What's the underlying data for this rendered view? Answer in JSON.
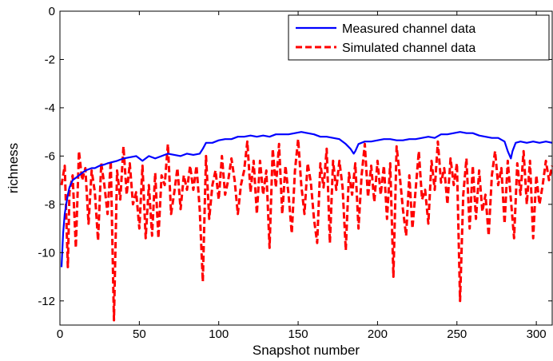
{
  "chart_data": {
    "type": "line",
    "title": "",
    "xlabel": "Snapshot number",
    "ylabel": "richness",
    "xlim": [
      0,
      310
    ],
    "ylim": [
      -13,
      0
    ],
    "xticks": [
      0,
      50,
      100,
      150,
      200,
      250,
      300
    ],
    "yticks": [
      0,
      -2,
      -4,
      -6,
      -8,
      -10,
      -12
    ],
    "grid": false,
    "legend_position": "top-right",
    "series": [
      {
        "name": "Measured channel data",
        "color": "#0000ff",
        "style": "solid",
        "x": [
          1,
          2,
          3,
          4,
          5,
          6,
          8,
          10,
          12,
          14,
          16,
          18,
          20,
          22,
          25,
          28,
          30,
          33,
          36,
          40,
          44,
          48,
          52,
          56,
          60,
          64,
          68,
          72,
          76,
          80,
          84,
          88,
          90,
          92,
          96,
          100,
          104,
          108,
          112,
          116,
          120,
          124,
          128,
          132,
          136,
          140,
          144,
          148,
          152,
          156,
          160,
          164,
          168,
          172,
          176,
          180,
          183,
          185,
          186,
          188,
          192,
          196,
          200,
          204,
          208,
          212,
          216,
          220,
          224,
          228,
          232,
          236,
          240,
          244,
          248,
          252,
          256,
          260,
          264,
          268,
          272,
          276,
          280,
          282,
          284,
          285,
          287,
          290,
          294,
          298,
          302,
          306,
          310
        ],
        "y": [
          -10.6,
          -9.2,
          -8.4,
          -8.0,
          -7.6,
          -7.3,
          -7.0,
          -6.9,
          -6.8,
          -6.7,
          -6.6,
          -6.55,
          -6.5,
          -6.5,
          -6.4,
          -6.35,
          -6.3,
          -6.25,
          -6.2,
          -6.1,
          -6.05,
          -6.0,
          -6.2,
          -6.0,
          -6.1,
          -6.0,
          -5.9,
          -5.95,
          -6.0,
          -5.9,
          -5.95,
          -5.9,
          -5.7,
          -5.45,
          -5.45,
          -5.35,
          -5.3,
          -5.3,
          -5.2,
          -5.2,
          -5.15,
          -5.2,
          -5.15,
          -5.2,
          -5.1,
          -5.1,
          -5.1,
          -5.05,
          -5.0,
          -5.05,
          -5.1,
          -5.2,
          -5.2,
          -5.25,
          -5.3,
          -5.5,
          -5.7,
          -5.9,
          -5.8,
          -5.5,
          -5.4,
          -5.4,
          -5.35,
          -5.3,
          -5.3,
          -5.35,
          -5.35,
          -5.3,
          -5.3,
          -5.25,
          -5.2,
          -5.25,
          -5.1,
          -5.1,
          -5.05,
          -5.0,
          -5.05,
          -5.05,
          -5.15,
          -5.2,
          -5.25,
          -5.25,
          -5.4,
          -5.8,
          -6.1,
          -5.8,
          -5.45,
          -5.4,
          -5.45,
          -5.4,
          -5.45,
          -5.4,
          -5.45
        ]
      },
      {
        "name": "Simulated channel data",
        "color": "#ff0000",
        "style": "dashed",
        "x": [
          1,
          3,
          5,
          6,
          8,
          10,
          12,
          14,
          16,
          18,
          20,
          22,
          24,
          26,
          28,
          30,
          32,
          34,
          36,
          38,
          40,
          42,
          44,
          46,
          48,
          50,
          52,
          54,
          56,
          58,
          60,
          62,
          64,
          66,
          68,
          70,
          72,
          74,
          76,
          78,
          80,
          82,
          84,
          86,
          88,
          90,
          92,
          94,
          96,
          98,
          100,
          102,
          104,
          106,
          108,
          110,
          112,
          114,
          116,
          118,
          120,
          122,
          124,
          126,
          128,
          130,
          132,
          134,
          136,
          138,
          140,
          142,
          144,
          146,
          148,
          150,
          152,
          154,
          156,
          158,
          160,
          162,
          164,
          166,
          168,
          170,
          172,
          174,
          176,
          178,
          180,
          182,
          184,
          186,
          188,
          190,
          192,
          194,
          196,
          198,
          200,
          202,
          204,
          206,
          208,
          210,
          212,
          214,
          216,
          218,
          220,
          222,
          224,
          226,
          228,
          230,
          232,
          234,
          236,
          238,
          240,
          242,
          244,
          246,
          248,
          250,
          252,
          254,
          256,
          258,
          260,
          262,
          264,
          266,
          268,
          270,
          272,
          274,
          276,
          278,
          280,
          282,
          284,
          286,
          288,
          290,
          292,
          294,
          296,
          298,
          300,
          302,
          304,
          306,
          308,
          310
        ],
        "y": [
          -7.2,
          -6.4,
          -10.6,
          -7.5,
          -6.8,
          -9.8,
          -5.8,
          -7.0,
          -6.5,
          -8.8,
          -6.6,
          -7.5,
          -9.5,
          -6.3,
          -7.2,
          -8.4,
          -6.2,
          -12.8,
          -6.6,
          -7.8,
          -5.6,
          -7.6,
          -6.3,
          -8.0,
          -7.5,
          -9.0,
          -6.4,
          -9.4,
          -7.2,
          -9.3,
          -6.7,
          -9.4,
          -6.8,
          -7.2,
          -5.5,
          -8.4,
          -7.5,
          -6.5,
          -8.2,
          -6.8,
          -7.4,
          -6.4,
          -7.4,
          -6.4,
          -8.2,
          -11.2,
          -6.0,
          -8.6,
          -7.2,
          -6.6,
          -7.8,
          -6.0,
          -7.6,
          -7.0,
          -6.1,
          -7.0,
          -8.4,
          -7.2,
          -6.6,
          -5.4,
          -7.5,
          -6.2,
          -8.4,
          -6.2,
          -7.6,
          -6.6,
          -9.8,
          -5.7,
          -7.3,
          -5.5,
          -8.4,
          -6.4,
          -7.6,
          -9.2,
          -6.6,
          -5.3,
          -7.2,
          -8.4,
          -6.3,
          -7.1,
          -8.6,
          -9.6,
          -6.3,
          -7.3,
          -5.7,
          -9.6,
          -6.2,
          -7.4,
          -6.2,
          -7.3,
          -9.9,
          -6.7,
          -7.6,
          -6.3,
          -9.0,
          -6.8,
          -5.5,
          -7.7,
          -6.4,
          -7.9,
          -6.2,
          -7.6,
          -6.4,
          -8.6,
          -6.3,
          -11.0,
          -5.6,
          -6.8,
          -8.2,
          -9.3,
          -6.8,
          -9.0,
          -7.4,
          -5.8,
          -7.8,
          -7.4,
          -8.8,
          -6.2,
          -7.4,
          -5.4,
          -7.1,
          -6.5,
          -8.0,
          -6.1,
          -7.2,
          -6.3,
          -12.0,
          -7.6,
          -6.1,
          -9.0,
          -6.4,
          -8.6,
          -6.6,
          -8.3,
          -7.6,
          -9.3,
          -6.8,
          -5.8,
          -7.2,
          -6.5,
          -8.8,
          -6.2,
          -7.8,
          -9.4,
          -6.3,
          -7.6,
          -5.8,
          -8.0,
          -6.2,
          -9.4,
          -6.8,
          -8.0,
          -7.2,
          -6.2,
          -7.0,
          -6.4
        ]
      }
    ]
  }
}
